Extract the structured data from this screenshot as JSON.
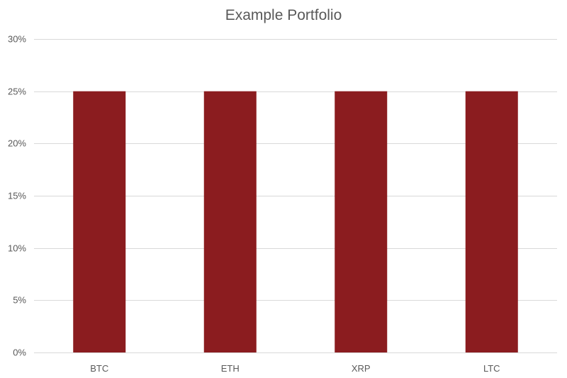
{
  "chart_data": {
    "type": "bar",
    "title": "Example Portfolio",
    "categories": [
      "BTC",
      "ETH",
      "XRP",
      "LTC"
    ],
    "values": [
      25,
      25,
      25,
      25
    ],
    "xlabel": "",
    "ylabel": "",
    "ylim": [
      0,
      30
    ],
    "y_ticks": [
      "0%",
      "5%",
      "10%",
      "15%",
      "20%",
      "25%",
      "30%"
    ],
    "y_tick_values": [
      0,
      5,
      10,
      15,
      20,
      25,
      30
    ],
    "grid": true,
    "legend": "none"
  },
  "colors": {
    "bar": "#8B1C1F",
    "grid": "#D9D9D9",
    "text": "#595959"
  }
}
